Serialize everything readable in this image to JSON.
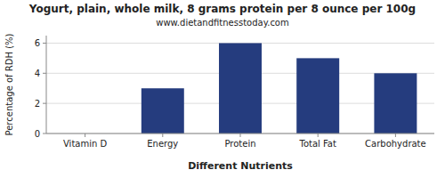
{
  "chart_data": {
    "type": "bar",
    "title": "Yogurt, plain, whole milk, 8 grams protein per 8 ounce per 100g",
    "subtitle": "www.dietandfitnesstoday.com",
    "x_label": "Different Nutrients",
    "y_label": "Percentage of RDH (%)",
    "categories": [
      "Vitamin D",
      "Energy",
      "Protein",
      "Total Fat",
      "Carbohydrate"
    ],
    "values": [
      0.0,
      3.0,
      6.0,
      5.0,
      4.0
    ],
    "color": "#253c7e",
    "ylim": [
      0,
      6.5
    ],
    "yticks": [
      0,
      2,
      4,
      6
    ],
    "grid": true
  }
}
